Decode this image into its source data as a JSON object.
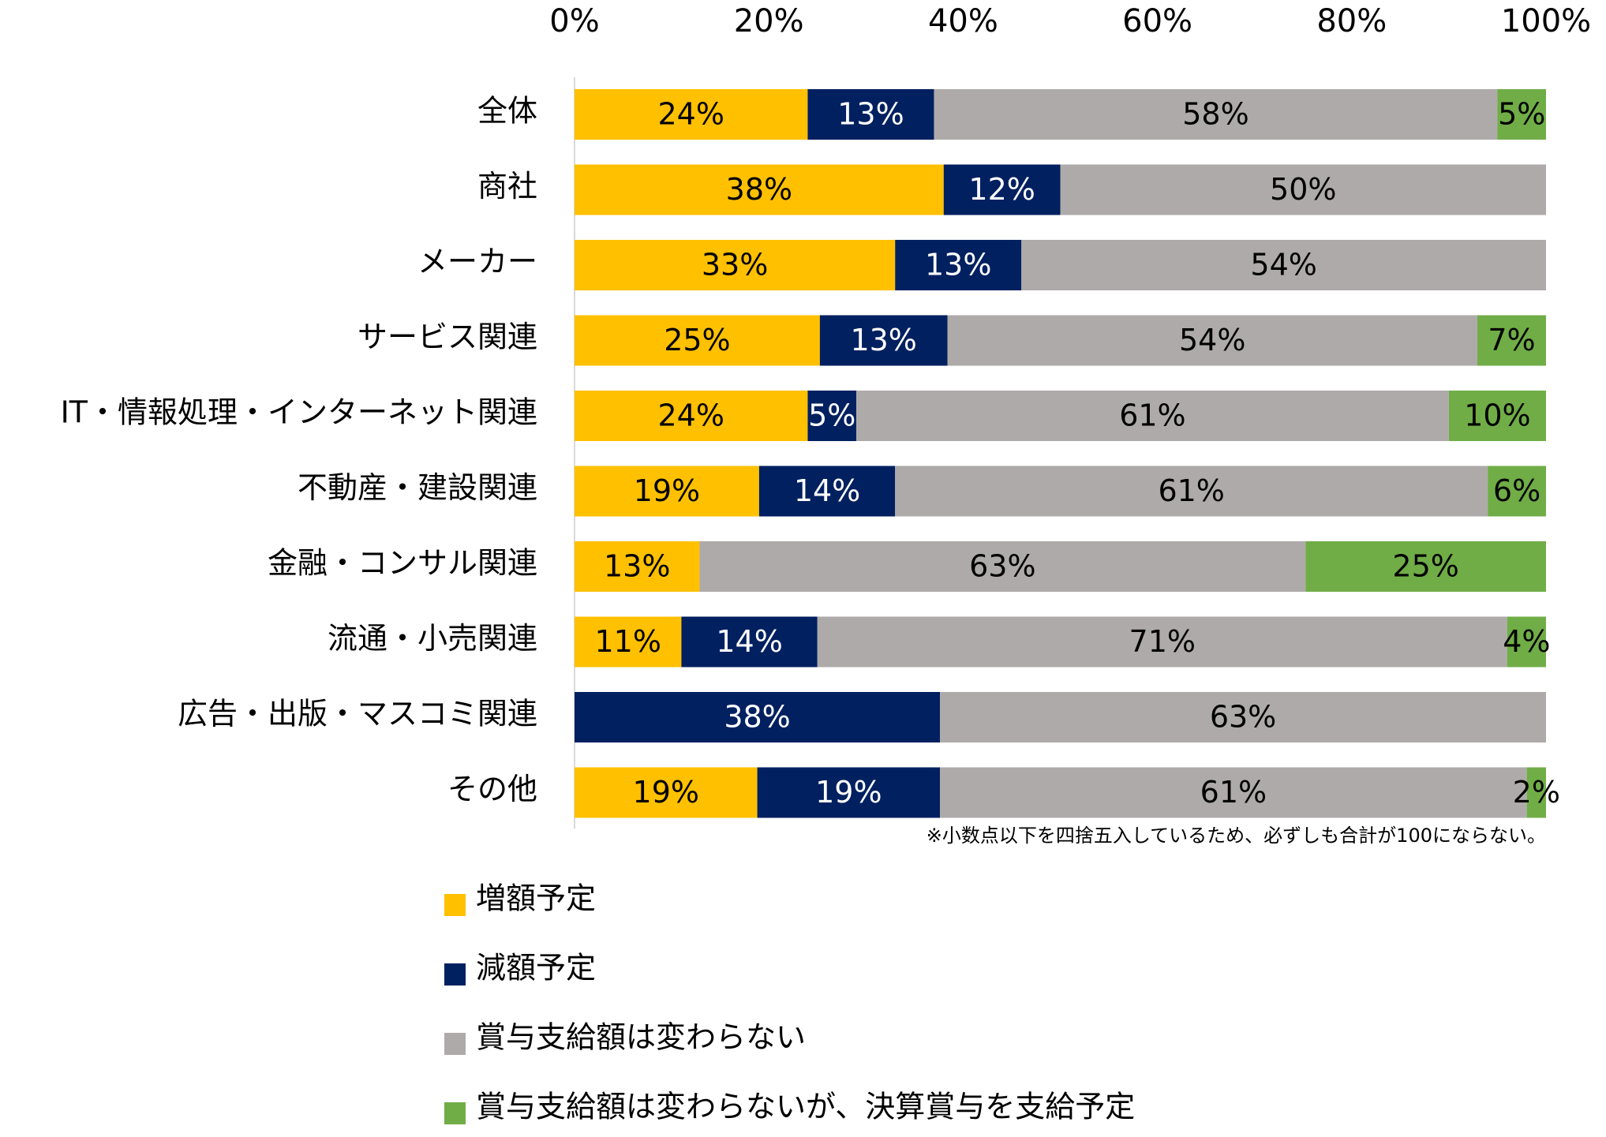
{
  "chart_data": {
    "type": "stacked-bar-horizontal-100",
    "x_tick_labels": [
      "0%",
      "20%",
      "40%",
      "60%",
      "80%",
      "100%"
    ],
    "xlim": [
      0,
      100
    ],
    "x_axis_position": "top",
    "grid": false,
    "legend_position": "bottom",
    "categories": [
      "全体",
      "商社",
      "メーカー",
      "サービス関連",
      "IT・情報処理・インターネット関連",
      "不動産・建設関連",
      "金融・コンサル関連",
      "流通・小売関連",
      "広告・出版・マスコミ関連",
      "その他"
    ],
    "series": [
      {
        "name": "増額予定",
        "color": "#FFC000",
        "label_color": "#000000",
        "values": [
          24,
          38,
          33,
          25,
          24,
          19,
          13,
          11,
          0,
          19
        ]
      },
      {
        "name": "減額予定",
        "color": "#002060",
        "label_color": "#FFFFFF",
        "values": [
          13,
          12,
          13,
          13,
          5,
          14,
          0,
          14,
          38,
          19
        ]
      },
      {
        "name": "賞与支給額は変わらない",
        "color": "#AEAAAA",
        "label_color": "#000000",
        "values": [
          58,
          50,
          54,
          54,
          61,
          61,
          63,
          71,
          63,
          61
        ]
      },
      {
        "name": "賞与支給額は変わらないが、決算賞与を支給予定",
        "color": "#70AD47",
        "label_color": "#000000",
        "values": [
          5,
          0,
          0,
          7,
          10,
          6,
          25,
          4,
          0,
          2
        ]
      }
    ],
    "value_suffix": "%",
    "annotation": "※小数点以下を四捨五入しているため、必ずしも合計が100にならない。"
  }
}
